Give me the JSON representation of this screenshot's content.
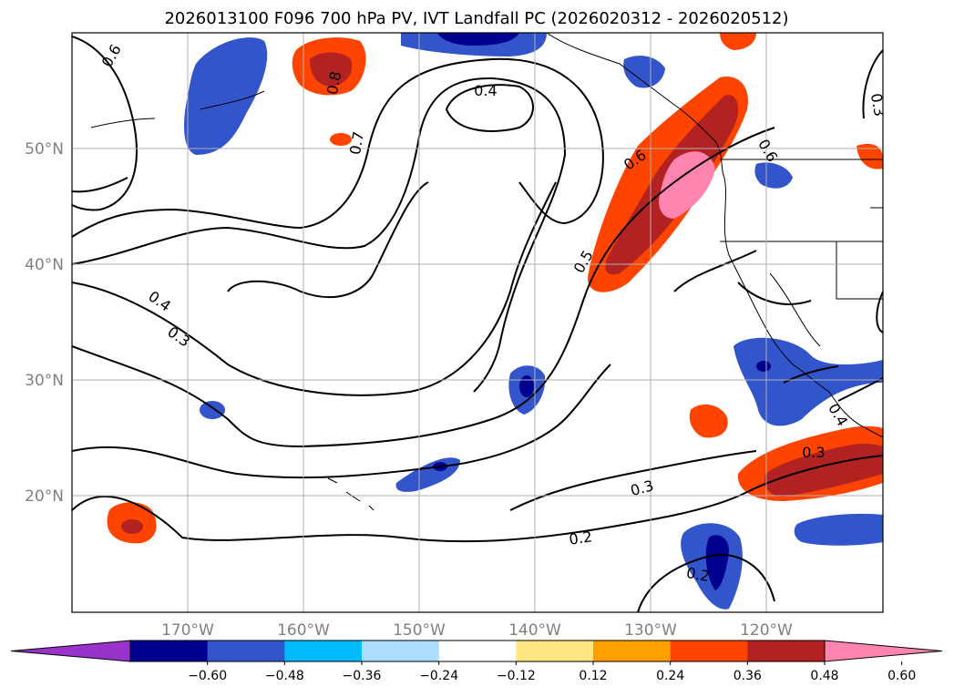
{
  "title": "2026013100 F096 700 hPa PV, IVT Landfall PC (2026020312 - 2026020512)",
  "map": {
    "lon_ticks": [
      "170°W",
      "160°W",
      "150°W",
      "140°W",
      "130°W",
      "120°W"
    ],
    "lat_ticks": [
      "50°N",
      "40°N",
      "30°N",
      "20°N"
    ],
    "gridlines": true
  },
  "contour_labels": [
    "0.6",
    "0.8",
    "0.7",
    "0.4",
    "0.6",
    "0.6",
    "0.5",
    "0.4",
    "0.3",
    "0.3",
    "0.3",
    "0.2",
    "0.2",
    "0.4",
    "0.3"
  ],
  "colorbar": {
    "ticks": [
      "−0.60",
      "−0.48",
      "−0.36",
      "−0.24",
      "−0.12",
      "0.12",
      "0.24",
      "0.36",
      "0.48",
      "0.60"
    ],
    "colors": [
      "#9933cc",
      "#000090",
      "#3355cc",
      "#00bbff",
      "#aaddff",
      "#ffffff",
      "#ffe680",
      "#ff9f00",
      "#ff4400",
      "#b22222",
      "#ff85b0"
    ]
  }
}
